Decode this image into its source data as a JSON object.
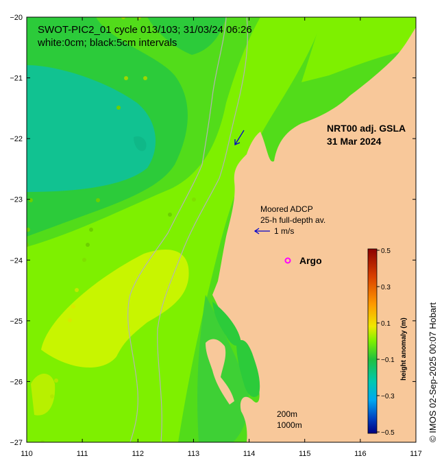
{
  "title": {
    "line1": "SWOT-PIC2_01 cycle 013/103; 31/03/24 06:26",
    "line2": "white:0cm; black:5cm intervals"
  },
  "product": {
    "line1": "NRT00 adj. GSLA",
    "line2": "31 Mar 2024"
  },
  "adcp": {
    "line1": "Moored ADCP",
    "line2": "25-h full-depth av.",
    "scale": "1 m/s",
    "arrow_color": "#0000cc"
  },
  "argo": {
    "label": "Argo",
    "marker_color": "#ff00ff"
  },
  "isobaths": {
    "line1": "200m",
    "line2": "1000m"
  },
  "colorbar": {
    "title": "height anomaly (m)",
    "ticks": [
      "0.5",
      "0.3",
      "0.1",
      "−0.1",
      "−0.3",
      "−0.5"
    ],
    "tick_values": [
      0.5,
      0.3,
      0.1,
      -0.1,
      -0.3,
      -0.5
    ]
  },
  "credit": "© IMOS 02-Sep-2025 00:07 Hobart",
  "axes": {
    "x_ticks": [
      "110",
      "111",
      "112",
      "113",
      "114",
      "115",
      "116",
      "117"
    ],
    "x_values": [
      110,
      111,
      112,
      113,
      114,
      115,
      116,
      117
    ],
    "y_ticks": [
      "−20",
      "−21",
      "−22",
      "−23",
      "−24",
      "−25",
      "−26",
      "−27"
    ],
    "y_values": [
      -20,
      -21,
      -22,
      -23,
      -24,
      -25,
      -26,
      -27
    ],
    "lon_range": [
      110,
      117
    ],
    "lat_range": [
      -27,
      -20
    ]
  },
  "colors": {
    "land": "#f8c89a",
    "teal": "#11c291",
    "green_mid": "#2ccb3a",
    "green_bright": "#52dc1a",
    "lime": "#7ef000",
    "yellow_green": "#c8f500",
    "isobath": "#b4b4b4"
  }
}
